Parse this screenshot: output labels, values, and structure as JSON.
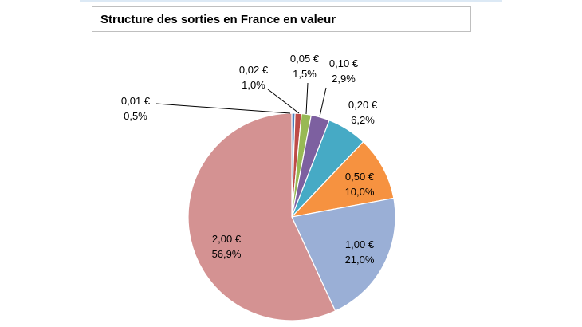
{
  "chart_data": {
    "type": "pie",
    "title": "Structure des sorties en France en valeur",
    "slices": [
      {
        "label": "0,01 €",
        "value": 0.5,
        "value_label": "0,5%",
        "color": "#4a7ebb"
      },
      {
        "label": "0,02 €",
        "value": 1.0,
        "value_label": "1,0%",
        "color": "#be4b48"
      },
      {
        "label": "0,05 €",
        "value": 1.5,
        "value_label": "1,5%",
        "color": "#98b954"
      },
      {
        "label": "0,10 €",
        "value": 2.9,
        "value_label": "2,9%",
        "color": "#7d60a0"
      },
      {
        "label": "0,20 €",
        "value": 6.2,
        "value_label": "6,2%",
        "color": "#46aac5"
      },
      {
        "label": "0,50 €",
        "value": 10.0,
        "value_label": "10,0%",
        "color": "#f69240"
      },
      {
        "label": "1,00 €",
        "value": 21.0,
        "value_label": "21,0%",
        "color": "#9aafd6"
      },
      {
        "label": "2,00 €",
        "value": 56.9,
        "value_label": "56,9%",
        "color": "#d49292"
      }
    ]
  }
}
